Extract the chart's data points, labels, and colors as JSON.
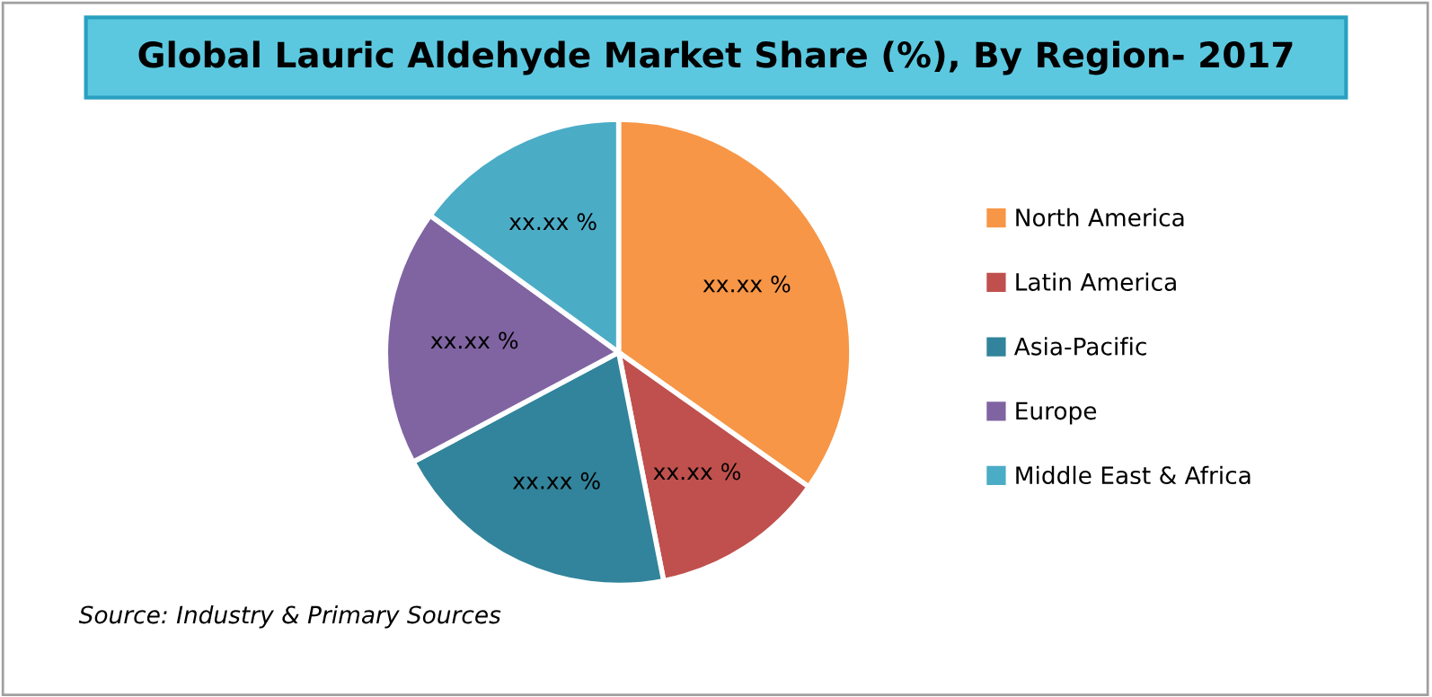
{
  "chart_data": {
    "type": "pie",
    "title": "Global Lauric Aldehyde Market Share (%), By Region- 2017",
    "categories": [
      "North America",
      "Latin America",
      "Asia-Pacific",
      "Europe",
      "Middle East & Africa"
    ],
    "values": [
      34.8,
      12.1,
      20.3,
      17.8,
      15.0
    ],
    "colors": [
      "#f79646",
      "#c0504d",
      "#31849b",
      "#8064a2",
      "#4bacc6"
    ],
    "value_labels": [
      "xx.xx %",
      "xx.xx %",
      "xx.xx %",
      "xx.xx %",
      "xx.xx %"
    ],
    "legend": "right",
    "annotations": [
      "Source: Industry & Primary Sources"
    ]
  }
}
